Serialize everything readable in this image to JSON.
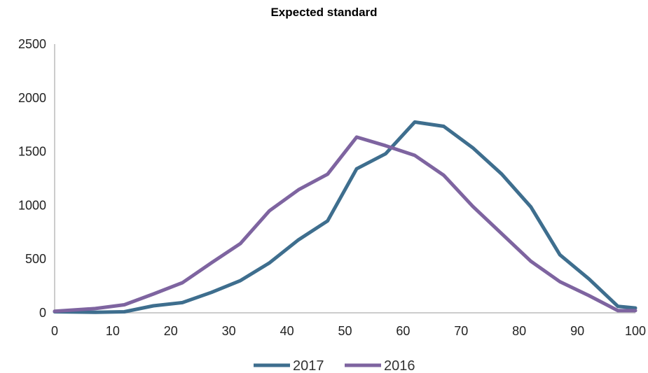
{
  "chart_data": {
    "type": "line",
    "title": "Expected standard",
    "xlabel": "",
    "ylabel": "",
    "xlim": [
      0,
      100
    ],
    "ylim": [
      0,
      2500
    ],
    "x_ticks": [
      0,
      10,
      20,
      30,
      40,
      50,
      60,
      70,
      80,
      90,
      100
    ],
    "y_ticks": [
      0,
      500,
      1000,
      1500,
      2000,
      2500
    ],
    "grid": false,
    "legend_position": "bottom",
    "series": [
      {
        "name": "2017",
        "color": "#3e6e8e",
        "x": [
          0,
          7,
          12,
          17,
          22,
          27,
          32,
          37,
          42,
          47,
          52,
          57,
          62,
          67,
          72,
          77,
          82,
          87,
          92,
          97,
          100
        ],
        "values": [
          10,
          5,
          10,
          65,
          95,
          190,
          300,
          465,
          680,
          855,
          1340,
          1480,
          1775,
          1735,
          1535,
          1290,
          985,
          540,
          315,
          60,
          45
        ]
      },
      {
        "name": "2016",
        "color": "#7e64a0",
        "x": [
          0,
          7,
          12,
          17,
          22,
          27,
          32,
          37,
          42,
          47,
          52,
          57,
          62,
          67,
          72,
          77,
          82,
          87,
          92,
          97,
          100
        ],
        "values": [
          15,
          40,
          75,
          175,
          280,
          465,
          645,
          950,
          1145,
          1290,
          1635,
          1555,
          1465,
          1280,
          990,
          735,
          480,
          290,
          160,
          20,
          20
        ]
      }
    ]
  }
}
